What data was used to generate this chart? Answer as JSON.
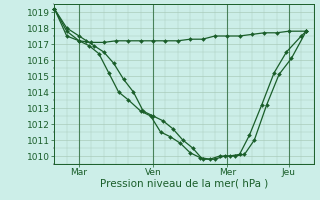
{
  "bg_color": "#cceee8",
  "grid_color": "#aaccbb",
  "line_color": "#1a5e2a",
  "xlabel": "Pression niveau de la mer( hPa )",
  "xlabel_color": "#1a5e2a",
  "xlabel_fontsize": 7.5,
  "yticks": [
    1010,
    1011,
    1012,
    1013,
    1014,
    1015,
    1016,
    1017,
    1018,
    1019
  ],
  "ylim": [
    1009.5,
    1019.5
  ],
  "xtick_labels": [
    "Mar",
    "Ven",
    "Mer",
    "Jeu"
  ],
  "xtick_positions": [
    1,
    4,
    7,
    9.5
  ],
  "xlim": [
    0,
    10.5
  ],
  "series1_x": [
    0.0,
    0.5,
    1.0,
    1.3,
    1.6,
    2.0,
    2.4,
    2.8,
    3.2,
    3.6,
    4.0,
    4.4,
    4.8,
    5.2,
    5.6,
    6.0,
    6.5,
    6.9,
    7.3,
    7.7,
    8.1,
    8.6,
    9.1,
    9.6,
    10.2
  ],
  "series1_y": [
    1019.2,
    1018.0,
    1017.5,
    1017.2,
    1016.9,
    1016.5,
    1015.8,
    1014.8,
    1014.0,
    1012.8,
    1012.5,
    1012.2,
    1011.7,
    1011.0,
    1010.5,
    1009.8,
    1009.8,
    1010.0,
    1010.0,
    1010.1,
    1011.0,
    1013.2,
    1015.1,
    1016.1,
    1017.8
  ],
  "series2_x": [
    0.0,
    0.5,
    1.0,
    1.5,
    2.0,
    2.5,
    3.0,
    3.5,
    4.0,
    4.5,
    5.0,
    5.5,
    6.0,
    6.5,
    7.0,
    7.5,
    8.0,
    8.5,
    9.0,
    9.5,
    10.2
  ],
  "series2_y": [
    1019.2,
    1017.5,
    1017.2,
    1017.1,
    1017.1,
    1017.2,
    1017.2,
    1017.2,
    1017.2,
    1017.2,
    1017.2,
    1017.3,
    1017.3,
    1017.5,
    1017.5,
    1017.5,
    1017.6,
    1017.7,
    1017.7,
    1017.8,
    1017.8
  ],
  "series3_x": [
    0.0,
    0.5,
    1.0,
    1.4,
    1.8,
    2.2,
    2.6,
    3.0,
    3.5,
    3.9,
    4.3,
    4.7,
    5.1,
    5.5,
    5.9,
    6.3,
    6.7,
    7.1,
    7.5,
    7.9,
    8.4,
    8.9,
    9.4,
    10.0,
    10.2
  ],
  "series3_y": [
    1019.2,
    1017.8,
    1017.2,
    1016.9,
    1016.4,
    1015.2,
    1014.0,
    1013.5,
    1012.8,
    1012.5,
    1011.5,
    1011.2,
    1010.8,
    1010.2,
    1009.9,
    1009.8,
    1010.0,
    1010.0,
    1010.1,
    1011.3,
    1013.2,
    1015.2,
    1016.5,
    1017.5,
    1017.8
  ]
}
